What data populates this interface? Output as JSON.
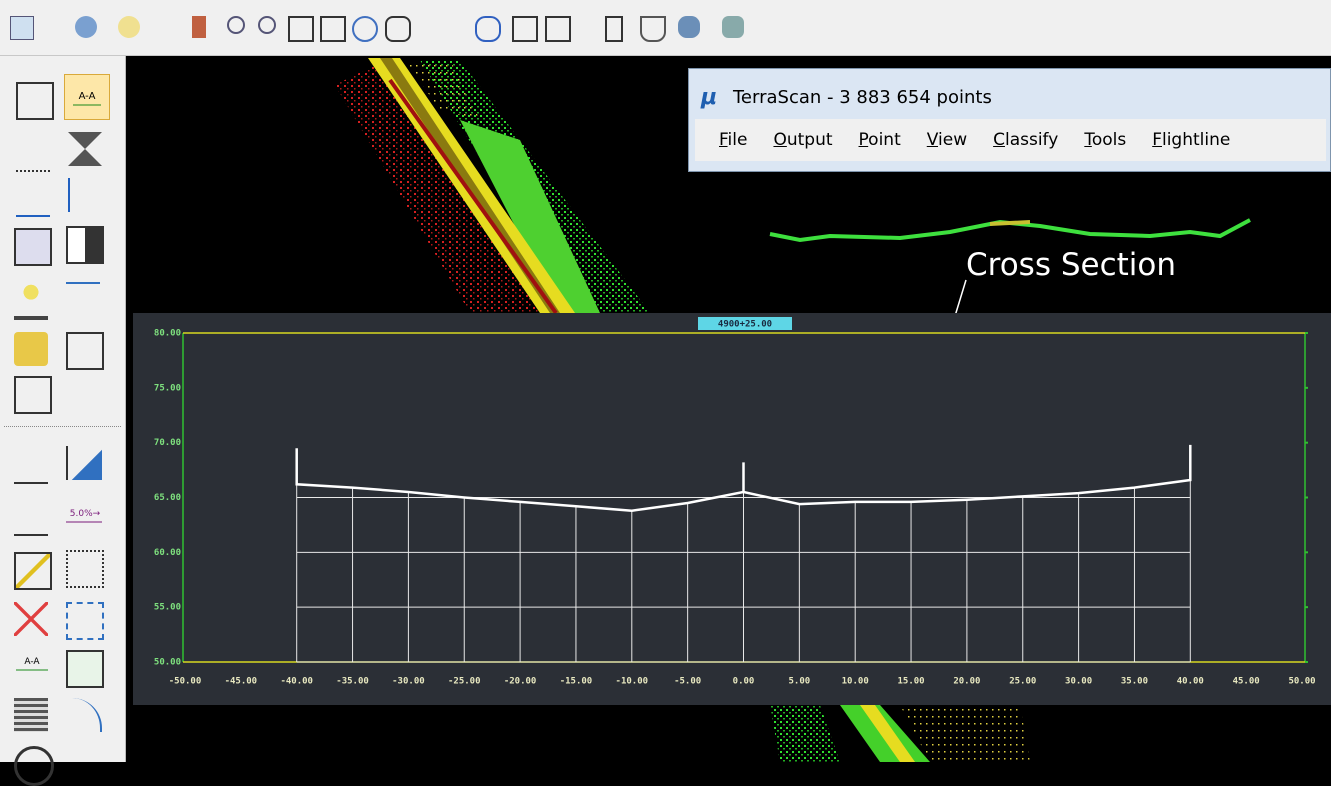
{
  "toolbar": {
    "labels": [
      "A-A",
      "5.0%→",
      "A-A"
    ]
  },
  "window": {
    "title": "TerraScan - 3 883 654 points",
    "menu": [
      "File",
      "Output",
      "Point",
      "View",
      "Classify",
      "Tools",
      "Flightline"
    ]
  },
  "annotation": "Cross Section",
  "cross_section": {
    "type": "line",
    "station": "4900+25.00",
    "color": "#ffffff",
    "grid": true,
    "x": [
      -40,
      -40,
      -35,
      -30,
      -25,
      -20,
      -15,
      -10,
      -5,
      0,
      0,
      0,
      5,
      10,
      15,
      20,
      25,
      30,
      35,
      40,
      40
    ],
    "values": [
      69.5,
      66.2,
      65.9,
      65.5,
      65.0,
      64.6,
      64.2,
      63.8,
      64.5,
      65.5,
      68.2,
      65.5,
      64.4,
      64.6,
      64.6,
      64.8,
      65.1,
      65.4,
      65.9,
      66.6,
      69.8
    ],
    "xlim": [
      -50,
      50
    ],
    "ylim": [
      50,
      80
    ],
    "xticks": [
      {
        "value": -50,
        "label": "-50.00"
      },
      {
        "value": -45,
        "label": "-45.00"
      },
      {
        "value": -40,
        "label": "-40.00"
      },
      {
        "value": -35,
        "label": "-35.00"
      },
      {
        "value": -30,
        "label": "-30.00"
      },
      {
        "value": -25,
        "label": "-25.00"
      },
      {
        "value": -20,
        "label": "-20.00"
      },
      {
        "value": -15,
        "label": "-15.00"
      },
      {
        "value": -10,
        "label": "-10.00"
      },
      {
        "value": -5,
        "label": "-5.00"
      },
      {
        "value": 0,
        "label": "0.00"
      },
      {
        "value": 5,
        "label": "5.00"
      },
      {
        "value": 10,
        "label": "10.00"
      },
      {
        "value": 15,
        "label": "15.00"
      },
      {
        "value": 20,
        "label": "20.00"
      },
      {
        "value": 25,
        "label": "25.00"
      },
      {
        "value": 30,
        "label": "30.00"
      },
      {
        "value": 35,
        "label": "35.00"
      },
      {
        "value": 40,
        "label": "40.00"
      },
      {
        "value": 45,
        "label": "45.00"
      },
      {
        "value": 50,
        "label": "50.00"
      }
    ],
    "yticks": [
      {
        "value": 80,
        "label": "80.00"
      },
      {
        "value": 75,
        "label": "75.00"
      },
      {
        "value": 70,
        "label": "70.00"
      },
      {
        "value": 65,
        "label": "65.00"
      },
      {
        "value": 60,
        "label": "60.00"
      },
      {
        "value": 55,
        "label": "55.00"
      },
      {
        "value": 50,
        "label": "50.00"
      }
    ]
  }
}
